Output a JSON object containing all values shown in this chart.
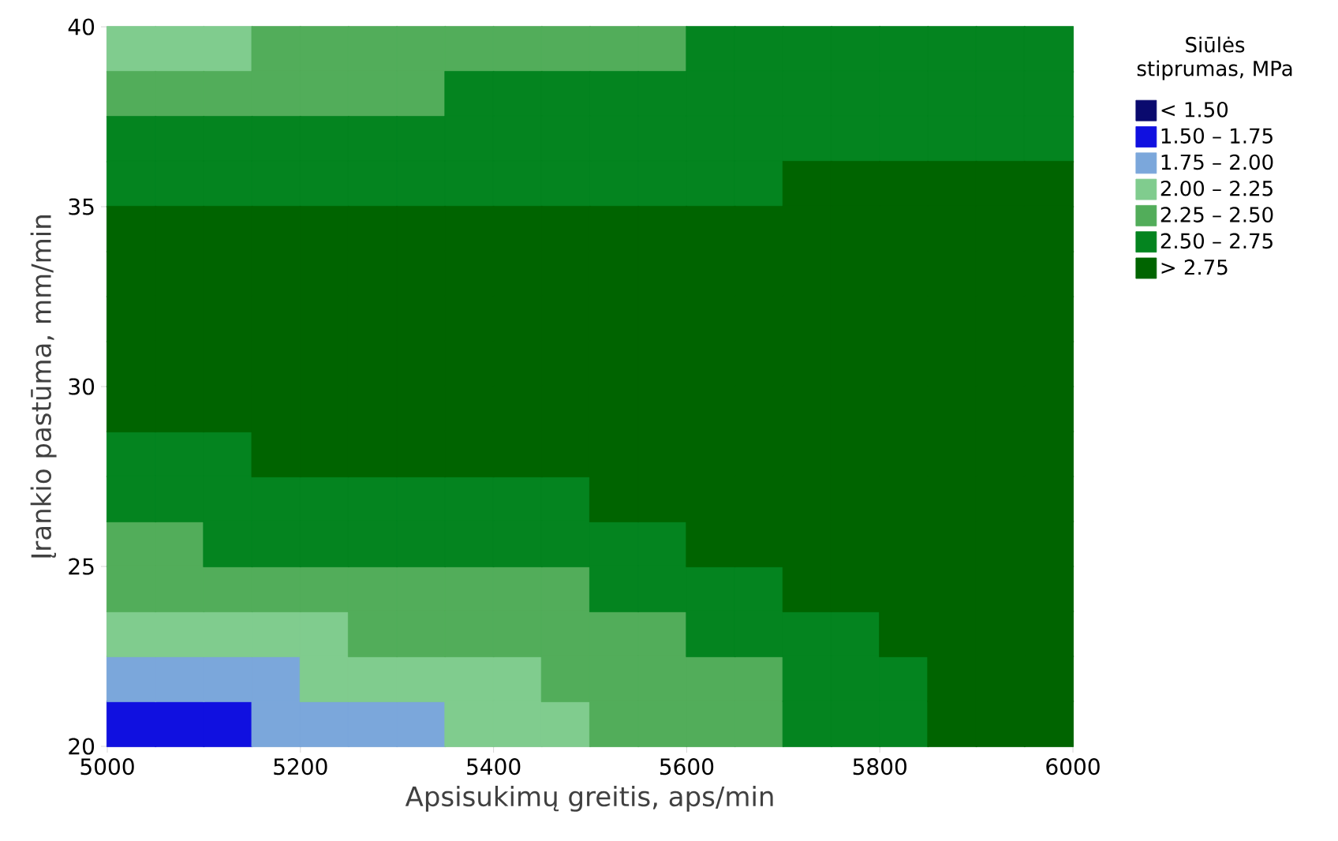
{
  "chart_data": {
    "type": "scatter",
    "xlabel": "Apsisukimų greitis, aps/min",
    "ylabel": "Įrankio pastūma, mm/min",
    "legend_title": "Siūlės stiprumas, MPa",
    "xlim": [
      5000,
      6000
    ],
    "xticks": [
      5000,
      5200,
      5400,
      5600,
      5800,
      6000
    ],
    "ylim": [
      20,
      40
    ],
    "yticks": [
      20,
      25,
      30,
      35,
      40
    ],
    "marker": "square",
    "legend": "right",
    "series": [
      {
        "name": "<  1.50",
        "color": "#0a0a6e"
      },
      {
        "name": "1.50  –  1.75",
        "color": "#1010e0",
        "x": [
          5025,
          5075,
          5125
        ],
        "values": [
          20.625,
          20.625,
          20.625
        ]
      },
      {
        "name": "1.75  –  2.00",
        "color": "#7ba7db",
        "x": [
          5025,
          5075,
          5125,
          5175,
          5175,
          5225,
          5275,
          5325
        ],
        "values": [
          21.875,
          21.875,
          21.875,
          21.875,
          20.625,
          20.625,
          20.625,
          20.625
        ]
      },
      {
        "name": "2.00  –  2.25",
        "color": "#80cc8e",
        "x": [
          5025,
          5075,
          5125,
          5025,
          5075,
          5125,
          5175,
          5225,
          5225,
          5275,
          5325,
          5375,
          5425,
          5375,
          5425,
          5475
        ],
        "values": [
          39.375,
          39.375,
          39.375,
          23.125,
          23.125,
          23.125,
          23.125,
          23.125,
          21.875,
          21.875,
          21.875,
          21.875,
          21.875,
          20.625,
          20.625,
          20.625
        ]
      },
      {
        "name": "2.25  –  2.50",
        "color": "#52ad5a",
        "x": [
          5175,
          5225,
          5275,
          5325,
          5375,
          5425,
          5475,
          5525,
          5575,
          5025,
          5075,
          5125,
          5175,
          5225,
          5275,
          5325,
          5025,
          5075,
          5025,
          5075,
          5125,
          5175,
          5225,
          5275,
          5325,
          5375,
          5425,
          5475,
          5275,
          5325,
          5375,
          5425,
          5475,
          5525,
          5575,
          5475,
          5525,
          5575,
          5625,
          5675,
          5525,
          5575,
          5625,
          5675
        ],
        "values": [
          39.375,
          39.375,
          39.375,
          39.375,
          39.375,
          39.375,
          39.375,
          39.375,
          39.375,
          38.125,
          38.125,
          38.125,
          38.125,
          38.125,
          38.125,
          38.125,
          25.625,
          25.625,
          24.375,
          24.375,
          24.375,
          24.375,
          24.375,
          24.375,
          24.375,
          24.375,
          24.375,
          24.375,
          23.125,
          23.125,
          23.125,
          23.125,
          23.125,
          23.125,
          23.125,
          21.875,
          21.875,
          21.875,
          21.875,
          21.875,
          20.625,
          20.625,
          20.625,
          20.625
        ]
      },
      {
        "name": "2.50  –  2.75",
        "color": "#04841f",
        "x": [
          5625,
          5675,
          5725,
          5775,
          5825,
          5875,
          5925,
          5975,
          5375,
          5425,
          5475,
          5525,
          5575,
          5625,
          5675,
          5725,
          5775,
          5825,
          5875,
          5925,
          5975,
          5025,
          5075,
          5125,
          5175,
          5225,
          5275,
          5325,
          5375,
          5425,
          5475,
          5525,
          5575,
          5625,
          5675,
          5725,
          5775,
          5825,
          5875,
          5925,
          5975,
          5025,
          5075,
          5125,
          5175,
          5225,
          5275,
          5325,
          5375,
          5425,
          5475,
          5525,
          5575,
          5625,
          5675,
          5025,
          5075,
          5125,
          5025,
          5075,
          5125,
          5175,
          5225,
          5275,
          5325,
          5375,
          5425,
          5475,
          5125,
          5175,
          5225,
          5275,
          5325,
          5375,
          5425,
          5475,
          5525,
          5575,
          5525,
          5575,
          5625,
          5675,
          5625,
          5675,
          5725,
          5775,
          5725,
          5775,
          5825,
          5725,
          5775,
          5825
        ],
        "values": [
          39.375,
          39.375,
          39.375,
          39.375,
          39.375,
          39.375,
          39.375,
          39.375,
          38.125,
          38.125,
          38.125,
          38.125,
          38.125,
          38.125,
          38.125,
          38.125,
          38.125,
          38.125,
          38.125,
          38.125,
          38.125,
          36.875,
          36.875,
          36.875,
          36.875,
          36.875,
          36.875,
          36.875,
          36.875,
          36.875,
          36.875,
          36.875,
          36.875,
          36.875,
          36.875,
          36.875,
          36.875,
          36.875,
          36.875,
          36.875,
          36.875,
          35.625,
          35.625,
          35.625,
          35.625,
          35.625,
          35.625,
          35.625,
          35.625,
          35.625,
          35.625,
          35.625,
          35.625,
          35.625,
          35.625,
          28.125,
          28.125,
          28.125,
          26.875,
          26.875,
          26.875,
          26.875,
          26.875,
          26.875,
          26.875,
          26.875,
          26.875,
          26.875,
          25.625,
          25.625,
          25.625,
          25.625,
          25.625,
          25.625,
          25.625,
          25.625,
          25.625,
          25.625,
          24.375,
          24.375,
          24.375,
          24.375,
          23.125,
          23.125,
          23.125,
          23.125,
          21.875,
          21.875,
          21.875,
          20.625,
          20.625,
          20.625
        ]
      },
      {
        "name": ">  2.75",
        "color": "#006400",
        "x": [
          5725,
          5775,
          5825,
          5875,
          5925,
          5975,
          5025,
          5075,
          5125,
          5175,
          5225,
          5275,
          5325,
          5375,
          5425,
          5475,
          5525,
          5575,
          5625,
          5675,
          5725,
          5775,
          5825,
          5875,
          5925,
          5975,
          5025,
          5075,
          5125,
          5175,
          5225,
          5275,
          5325,
          5375,
          5425,
          5475,
          5525,
          5575,
          5625,
          5675,
          5725,
          5775,
          5825,
          5875,
          5925,
          5975,
          5025,
          5075,
          5125,
          5175,
          5225,
          5275,
          5325,
          5375,
          5425,
          5475,
          5525,
          5575,
          5625,
          5675,
          5725,
          5775,
          5825,
          5875,
          5925,
          5975,
          5025,
          5075,
          5125,
          5175,
          5225,
          5275,
          5325,
          5375,
          5425,
          5475,
          5525,
          5575,
          5625,
          5675,
          5725,
          5775,
          5825,
          5875,
          5925,
          5975,
          5025,
          5075,
          5125,
          5175,
          5225,
          5275,
          5325,
          5375,
          5425,
          5475,
          5525,
          5575,
          5625,
          5675,
          5725,
          5775,
          5825,
          5875,
          5925,
          5975,
          5175,
          5225,
          5275,
          5325,
          5375,
          5425,
          5475,
          5525,
          5575,
          5625,
          5675,
          5725,
          5775,
          5825,
          5875,
          5925,
          5975,
          5525,
          5575,
          5625,
          5675,
          5725,
          5775,
          5825,
          5875,
          5925,
          5975,
          5625,
          5675,
          5725,
          5775,
          5825,
          5875,
          5925,
          5975,
          5725,
          5775,
          5825,
          5875,
          5925,
          5975,
          5825,
          5875,
          5925,
          5975,
          5875,
          5925,
          5975,
          5875,
          5925,
          5975
        ],
        "values": [
          35.625,
          35.625,
          35.625,
          35.625,
          35.625,
          35.625,
          34.375,
          34.375,
          34.375,
          34.375,
          34.375,
          34.375,
          34.375,
          34.375,
          34.375,
          34.375,
          34.375,
          34.375,
          34.375,
          34.375,
          34.375,
          34.375,
          34.375,
          34.375,
          34.375,
          34.375,
          33.125,
          33.125,
          33.125,
          33.125,
          33.125,
          33.125,
          33.125,
          33.125,
          33.125,
          33.125,
          33.125,
          33.125,
          33.125,
          33.125,
          33.125,
          33.125,
          33.125,
          33.125,
          33.125,
          33.125,
          31.875,
          31.875,
          31.875,
          31.875,
          31.875,
          31.875,
          31.875,
          31.875,
          31.875,
          31.875,
          31.875,
          31.875,
          31.875,
          31.875,
          31.875,
          31.875,
          31.875,
          31.875,
          31.875,
          31.875,
          30.625,
          30.625,
          30.625,
          30.625,
          30.625,
          30.625,
          30.625,
          30.625,
          30.625,
          30.625,
          30.625,
          30.625,
          30.625,
          30.625,
          30.625,
          30.625,
          30.625,
          30.625,
          30.625,
          30.625,
          29.375,
          29.375,
          29.375,
          29.375,
          29.375,
          29.375,
          29.375,
          29.375,
          29.375,
          29.375,
          29.375,
          29.375,
          29.375,
          29.375,
          29.375,
          29.375,
          29.375,
          29.375,
          29.375,
          29.375,
          28.125,
          28.125,
          28.125,
          28.125,
          28.125,
          28.125,
          28.125,
          28.125,
          28.125,
          28.125,
          28.125,
          28.125,
          28.125,
          28.125,
          28.125,
          28.125,
          28.125,
          26.875,
          26.875,
          26.875,
          26.875,
          26.875,
          26.875,
          26.875,
          26.875,
          26.875,
          26.875,
          25.625,
          25.625,
          25.625,
          25.625,
          25.625,
          25.625,
          25.625,
          25.625,
          24.375,
          24.375,
          24.375,
          24.375,
          24.375,
          24.375,
          23.125,
          23.125,
          23.125,
          23.125,
          21.875,
          21.875,
          21.875,
          20.625,
          20.625,
          20.625
        ]
      }
    ]
  }
}
